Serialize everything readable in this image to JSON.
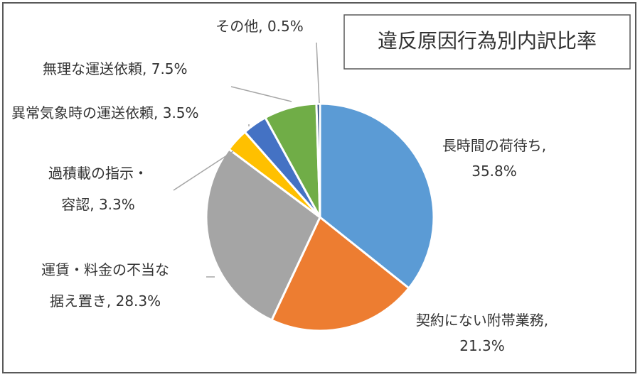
{
  "chart_data": {
    "type": "pie",
    "title": "違反原因行為別内訳比率",
    "slices": [
      {
        "name": "長時間の荷待ち",
        "value": 35.8,
        "value_label": "35.8%",
        "color": "#5b9bd5",
        "label_lines": [
          "長時間の荷待ち,",
          "35.8%"
        ]
      },
      {
        "name": "契約にない附帯業務",
        "value": 21.3,
        "value_label": "21.3%",
        "color": "#ed7d31",
        "label_lines": [
          "契約にない附帯業務,",
          "21.3%"
        ]
      },
      {
        "name": "運賃・料金の不当な据え置き",
        "value": 28.3,
        "value_label": "28.3%",
        "color": "#a5a5a5",
        "label_lines": [
          "運賃・料金の不当な",
          "据え置き, 28.3%"
        ]
      },
      {
        "name": "過積載の指示・容認",
        "value": 3.3,
        "value_label": "3.3%",
        "color": "#ffc000",
        "label_lines": [
          "過積載の指示・",
          "容認, 3.3%"
        ]
      },
      {
        "name": "異常気象時の運送依頼",
        "value": 3.5,
        "value_label": "3.5%",
        "color": "#4472c4",
        "label_lines": [
          "異常気象時の運送依頼, 3.5%"
        ]
      },
      {
        "name": "無理な運送依頼",
        "value": 7.5,
        "value_label": "7.5%",
        "color": "#70ad47",
        "label_lines": [
          "無理な運送依頼, 7.5%"
        ]
      },
      {
        "name": "その他",
        "value": 0.5,
        "value_label": "0.5%",
        "color": "#264478",
        "label_lines": [
          "その他, 0.5%"
        ]
      }
    ]
  }
}
